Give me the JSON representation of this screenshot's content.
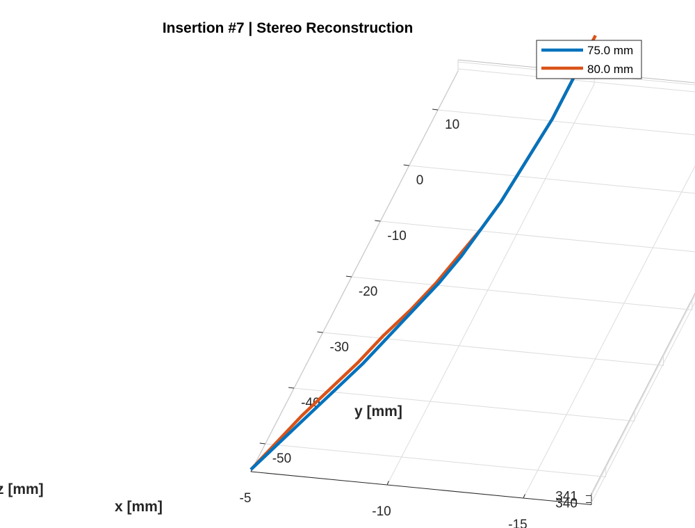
{
  "chart_data": {
    "type": "line",
    "title": "Insertion #7 | Stereo Reconstruction",
    "xlabel": "x [mm]",
    "ylabel": "y [mm]",
    "zlabel": "z [mm]",
    "x_ticks": [
      "-15",
      "-10",
      "-5"
    ],
    "y_ticks": [
      "-50",
      "-40",
      "-30",
      "-20",
      "-10",
      "0",
      "10"
    ],
    "z_ticks": [
      "340",
      "341"
    ],
    "xlim": [
      -17.5,
      -5
    ],
    "ylim": [
      -55,
      17
    ],
    "zlim": [
      339.7,
      341.3
    ],
    "grid": true,
    "legend_position": "top-right",
    "series": [
      {
        "name": "75.0 mm",
        "color": "#0072BD",
        "points": [
          [
            -5.0,
            -55.0,
            340.0
          ],
          [
            -5.5,
            -50.0,
            340.0
          ],
          [
            -6.0,
            -45.0,
            340.0
          ],
          [
            -6.5,
            -40.0,
            340.0
          ],
          [
            -7.0,
            -35.0,
            340.0
          ],
          [
            -7.4,
            -30.0,
            340.0
          ],
          [
            -7.8,
            -25.0,
            340.0
          ],
          [
            -8.2,
            -20.0,
            340.0
          ],
          [
            -8.5,
            -15.0,
            340.0
          ],
          [
            -8.7,
            -10.0,
            340.0
          ],
          [
            -8.9,
            -5.0,
            340.0
          ],
          [
            -9.0,
            0.0,
            340.0
          ],
          [
            -9.1,
            5.0,
            340.0
          ],
          [
            -9.2,
            10.0,
            340.0
          ],
          [
            -9.2,
            15.0,
            340.0
          ],
          [
            -9.2,
            20.0,
            340.0
          ]
        ]
      },
      {
        "name": "80.0 mm",
        "color": "#D95319",
        "points": [
          [
            -5.0,
            -55.0,
            340.0
          ],
          [
            -5.4,
            -50.0,
            340.0
          ],
          [
            -5.8,
            -45.0,
            340.0
          ],
          [
            -6.3,
            -40.0,
            340.0
          ],
          [
            -6.8,
            -35.0,
            340.0
          ],
          [
            -7.2,
            -30.0,
            340.0
          ],
          [
            -7.7,
            -25.0,
            340.0
          ],
          [
            -8.1,
            -20.0,
            340.0
          ],
          [
            -8.4,
            -15.0,
            340.0
          ],
          [
            -8.7,
            -10.0,
            340.0
          ],
          [
            -8.9,
            -5.0,
            340.0
          ],
          [
            -9.0,
            0.0,
            340.0
          ],
          [
            -9.1,
            5.0,
            340.0
          ],
          [
            -9.2,
            10.0,
            340.0
          ],
          [
            -9.2,
            15.0,
            340.0
          ],
          [
            -9.2,
            20.0,
            340.0
          ],
          [
            -9.2,
            25.0,
            340.0
          ]
        ]
      }
    ]
  }
}
